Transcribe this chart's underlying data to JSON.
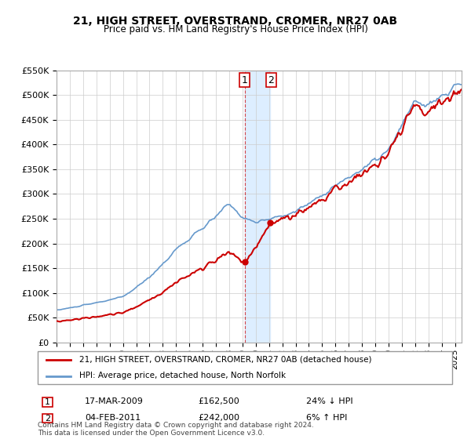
{
  "title": "21, HIGH STREET, OVERSTRAND, CROMER, NR27 0AB",
  "subtitle": "Price paid vs. HM Land Registry's House Price Index (HPI)",
  "legend_line1": "21, HIGH STREET, OVERSTRAND, CROMER, NR27 0AB (detached house)",
  "legend_line2": "HPI: Average price, detached house, North Norfolk",
  "transaction1_label": "1",
  "transaction1_date": "17-MAR-2009",
  "transaction1_price": "£162,500",
  "transaction1_hpi": "24% ↓ HPI",
  "transaction2_label": "2",
  "transaction2_date": "04-FEB-2011",
  "transaction2_price": "£242,000",
  "transaction2_hpi": "6% ↑ HPI",
  "footer": "Contains HM Land Registry data © Crown copyright and database right 2024.\nThis data is licensed under the Open Government Licence v3.0.",
  "price_color": "#cc0000",
  "hpi_color": "#6699cc",
  "highlight_color": "#ddeeff",
  "background_color": "#ffffff",
  "grid_color": "#cccccc",
  "ymin": 0,
  "ymax": 550000,
  "xmin": 1995.0,
  "xmax": 2025.5
}
